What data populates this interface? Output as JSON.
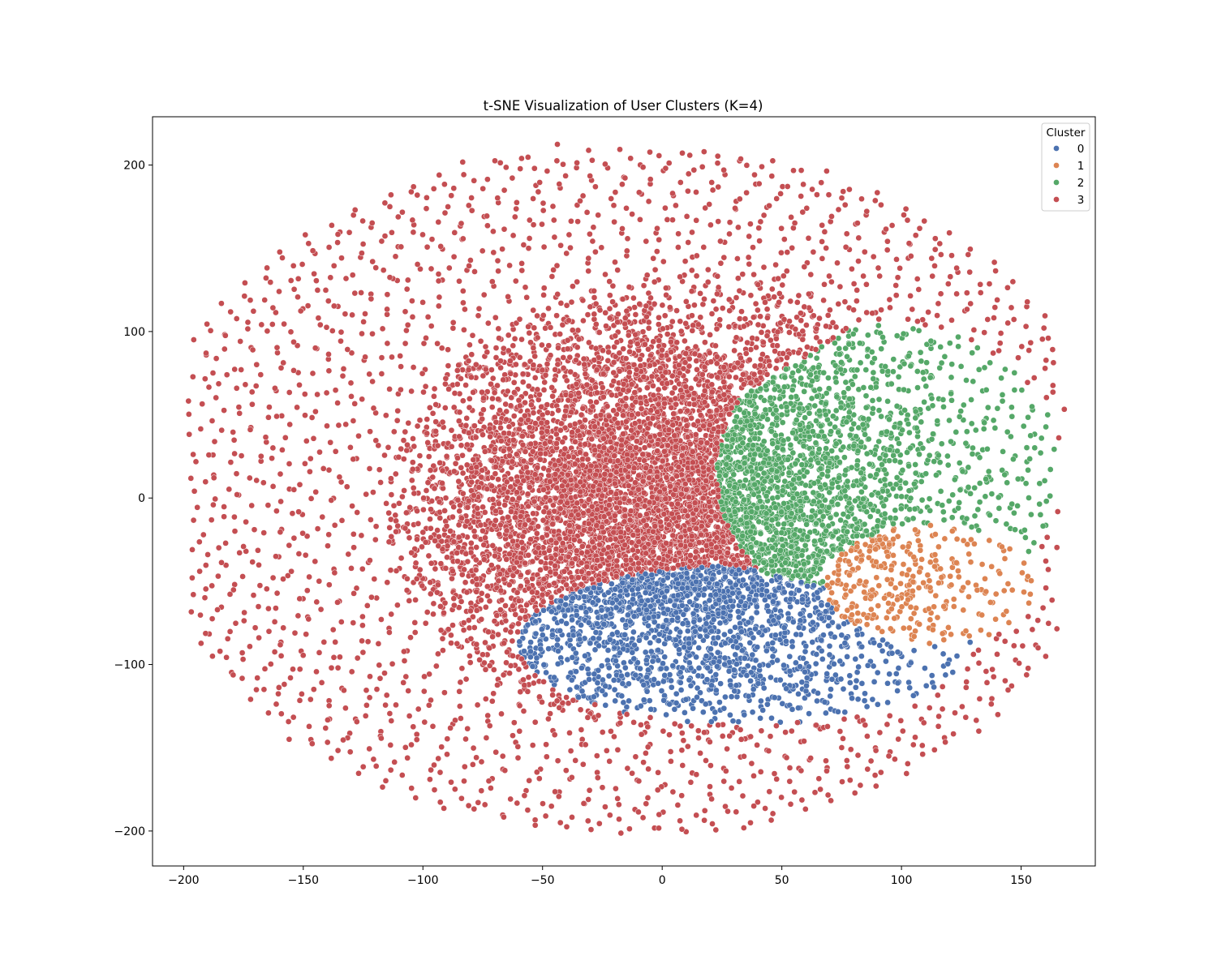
{
  "chart_data": {
    "type": "scatter",
    "title": "t-SNE Visualization of User Clusters (K=4)",
    "xlabel": "",
    "ylabel": "",
    "xlim": [
      -213,
      181
    ],
    "ylim": [
      -221,
      229
    ],
    "xticks": [
      -200,
      -150,
      -100,
      -50,
      0,
      50,
      100,
      150
    ],
    "yticks": [
      -200,
      -100,
      0,
      100,
      200
    ],
    "xtick_labels": [
      "−200",
      "−150",
      "−100",
      "−50",
      "0",
      "50",
      "100",
      "150"
    ],
    "ytick_labels": [
      "−200",
      "−100",
      "0",
      "100",
      "200"
    ],
    "grid": false,
    "legend": {
      "title": "Cluster",
      "placement": "top-right",
      "entries": [
        {
          "label": "0",
          "color": "#4c72b0"
        },
        {
          "label": "1",
          "color": "#dd8452"
        },
        {
          "label": "2",
          "color": "#55a868"
        },
        {
          "label": "3",
          "color": "#c44e52"
        }
      ]
    },
    "series": [
      {
        "name": "0",
        "color": "#4c72b0",
        "approx_center": [
          45,
          -85
        ],
        "approx_extent": {
          "x": [
            -57,
            131
          ],
          "y": [
            -140,
            -38
          ]
        }
      },
      {
        "name": "1",
        "color": "#dd8452",
        "approx_center": [
          115,
          -55
        ],
        "approx_extent": {
          "x": [
            65,
            157
          ],
          "y": [
            -90,
            -17
          ]
        }
      },
      {
        "name": "2",
        "color": "#55a868",
        "approx_center": [
          100,
          20
        ],
        "approx_extent": {
          "x": [
            15,
            163
          ],
          "y": [
            -75,
            112
          ]
        }
      },
      {
        "name": "3",
        "color": "#c44e52",
        "approx_center": [
          -10,
          30
        ],
        "approx_extent": {
          "x": [
            -197,
            163
          ],
          "y": [
            -200,
            209
          ]
        }
      }
    ]
  }
}
